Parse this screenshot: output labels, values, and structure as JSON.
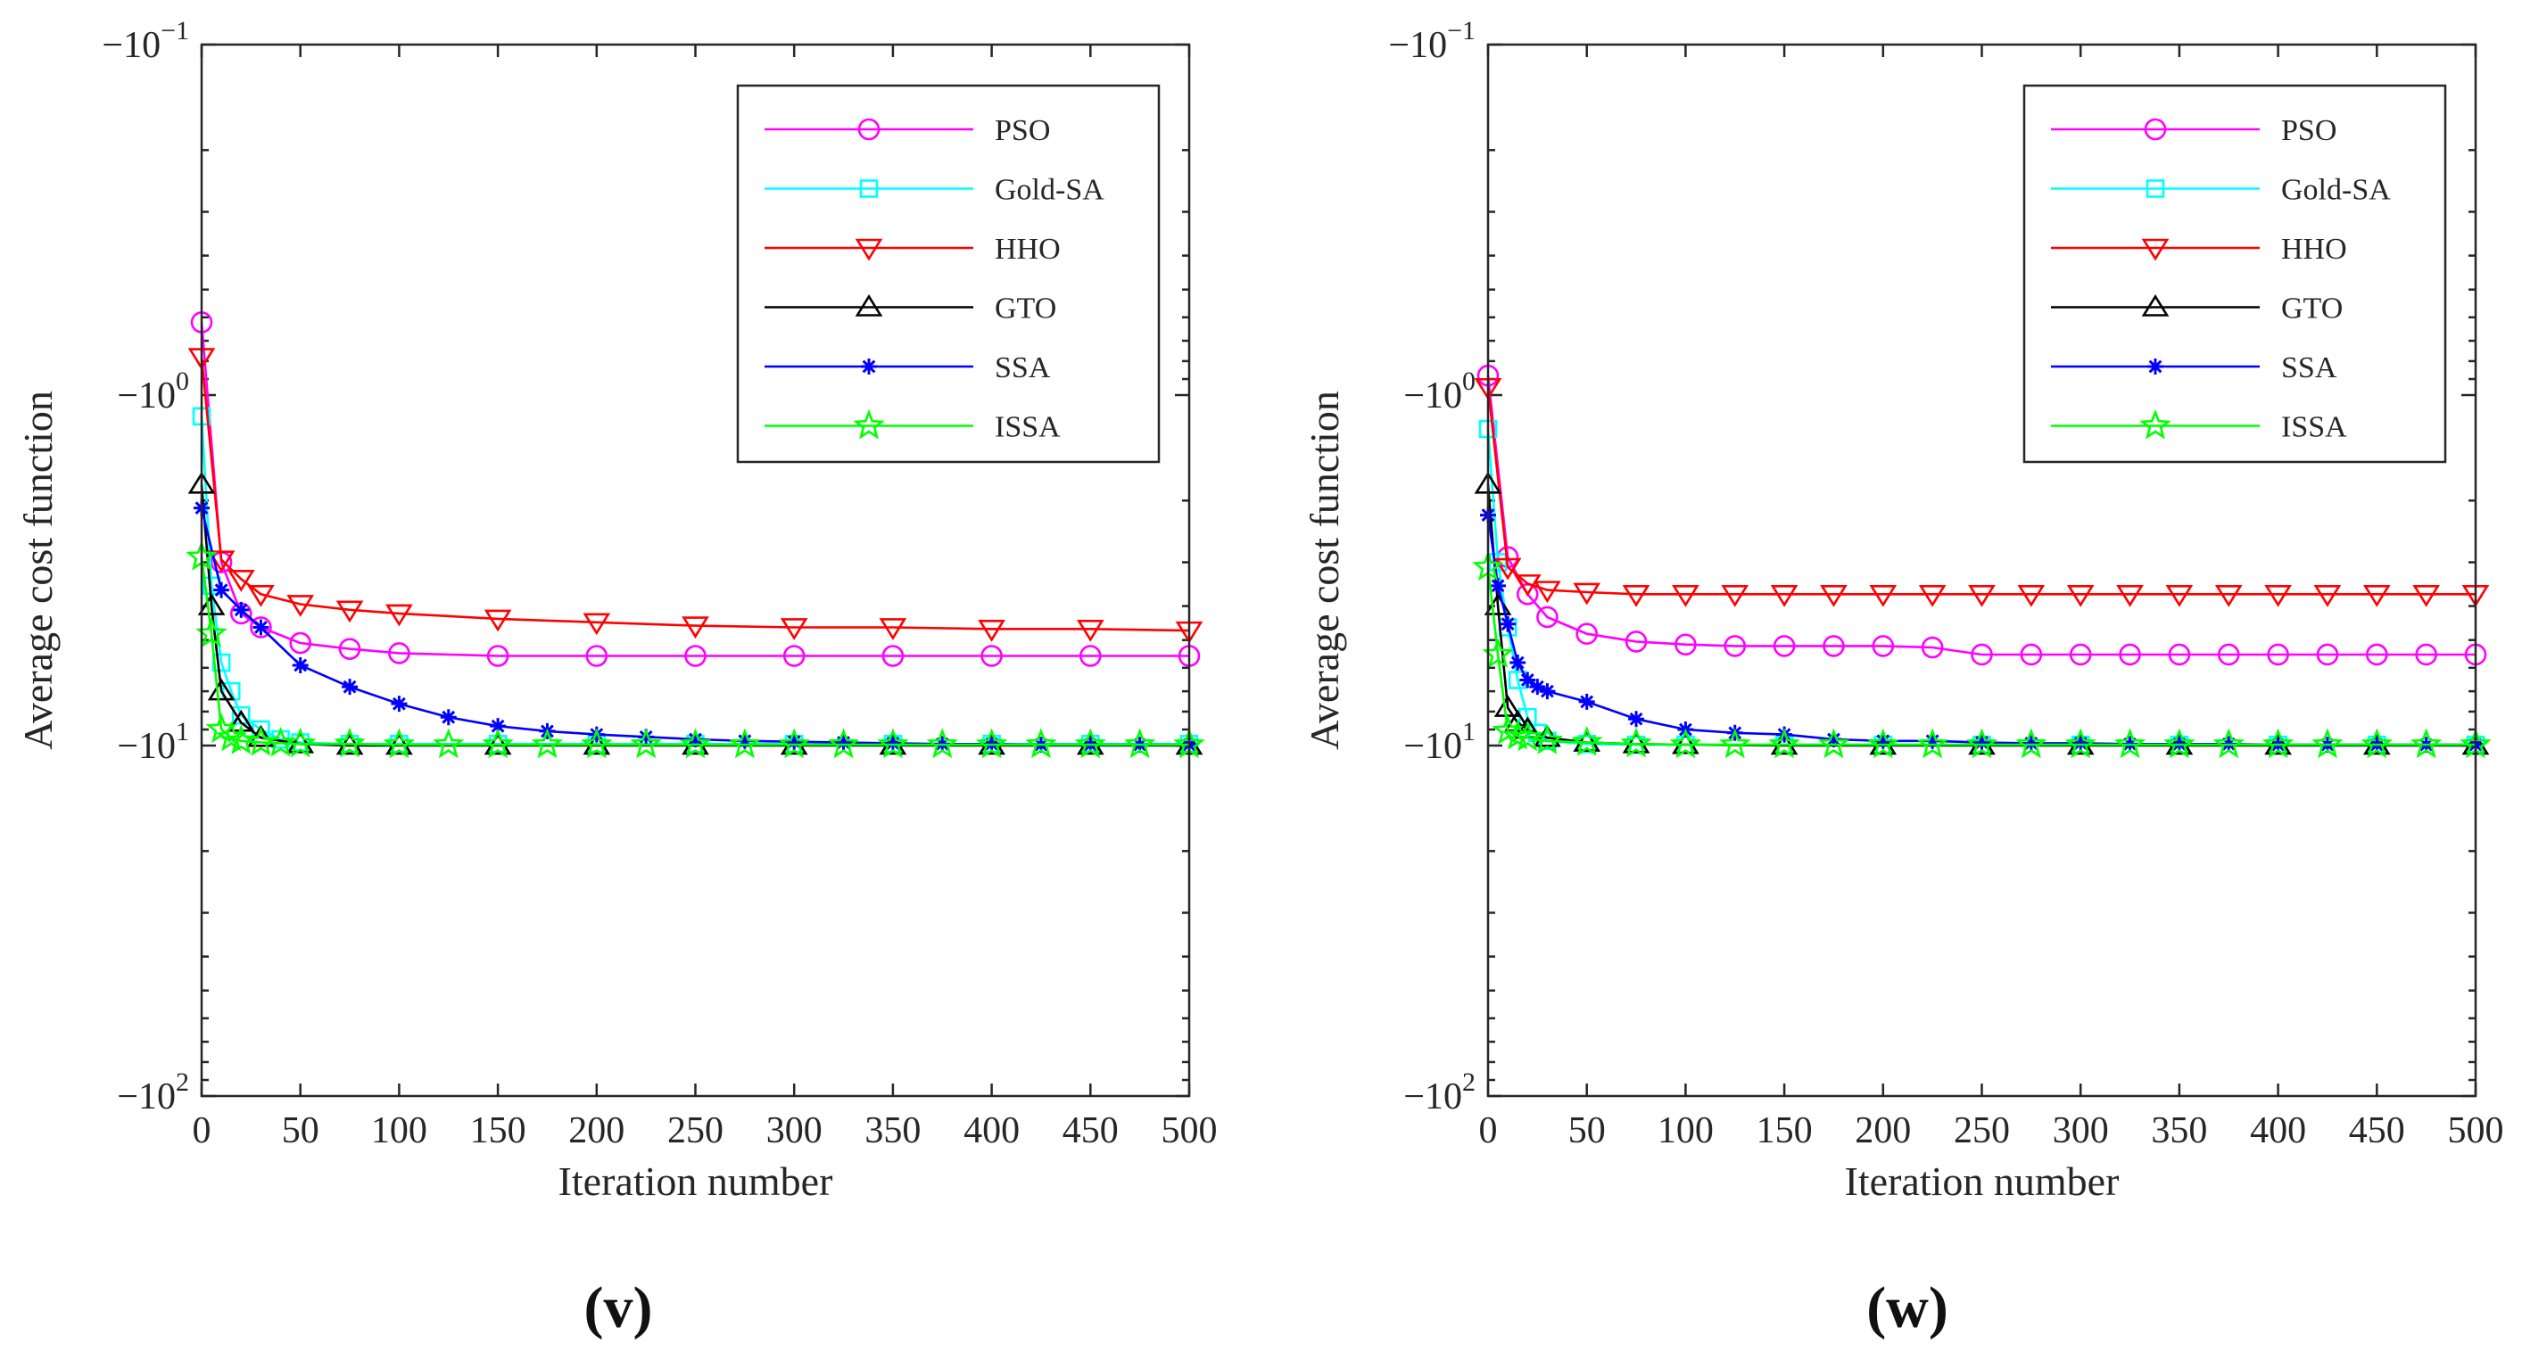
{
  "chart_data": [
    {
      "type": "line",
      "panel_label": "(v)",
      "xlabel": "Iteration number",
      "ylabel": "Average cost function",
      "xlim": [
        0,
        500
      ],
      "xticks": [
        0,
        50,
        100,
        150,
        200,
        250,
        300,
        350,
        400,
        450,
        500
      ],
      "ylim_log_magnitude": [
        0.1,
        100
      ],
      "yscale": "log (negative values, magnitude increases downward)",
      "yticks": [
        {
          "value": -0.1,
          "base": "−10",
          "exp": "−1"
        },
        {
          "value": -1,
          "base": "−10",
          "exp": "0"
        },
        {
          "value": -10,
          "base": "−10",
          "exp": "1"
        },
        {
          "value": -100,
          "base": "−10",
          "exp": "2"
        }
      ],
      "legend_position": "top-right",
      "series": [
        {
          "name": "PSO",
          "color": "#ff00ff",
          "marker": "circle",
          "x": [
            0,
            10,
            20,
            30,
            50,
            75,
            100,
            150,
            200,
            250,
            300,
            350,
            400,
            450,
            500
          ],
          "y": [
            -0.62,
            -3.0,
            -4.2,
            -4.6,
            -5.1,
            -5.3,
            -5.45,
            -5.55,
            -5.55,
            -5.55,
            -5.55,
            -5.55,
            -5.55,
            -5.55,
            -5.55
          ]
        },
        {
          "name": "Gold-SA",
          "color": "#00ffff",
          "marker": "square",
          "x": [
            0,
            5,
            10,
            15,
            20,
            30,
            40,
            50,
            75,
            100,
            150,
            200,
            250,
            300,
            350,
            400,
            450,
            500
          ],
          "y": [
            -1.15,
            -3.5,
            -5.8,
            -7.0,
            -8.2,
            -9.0,
            -9.6,
            -9.8,
            -9.9,
            -9.9,
            -9.9,
            -9.9,
            -9.9,
            -9.9,
            -9.9,
            -9.9,
            -9.9,
            -9.9
          ]
        },
        {
          "name": "HHO",
          "color": "#ff0000",
          "marker": "triangle-down",
          "x": [
            0,
            10,
            20,
            30,
            50,
            75,
            100,
            150,
            200,
            250,
            300,
            350,
            400,
            450,
            500
          ],
          "y": [
            -0.78,
            -2.95,
            -3.35,
            -3.7,
            -3.95,
            -4.1,
            -4.2,
            -4.35,
            -4.45,
            -4.55,
            -4.6,
            -4.6,
            -4.65,
            -4.65,
            -4.7
          ]
        },
        {
          "name": "GTO",
          "color": "#000000",
          "marker": "triangle-up",
          "x": [
            0,
            5,
            10,
            20,
            30,
            50,
            75,
            100,
            150,
            200,
            250,
            300,
            350,
            400,
            450,
            500
          ],
          "y": [
            -1.8,
            -4.0,
            -7.0,
            -8.6,
            -9.5,
            -9.9,
            -10.0,
            -10.0,
            -10.0,
            -10.0,
            -10.0,
            -10.0,
            -10.0,
            -10.0,
            -10.0,
            -10.0
          ]
        },
        {
          "name": "SSA",
          "color": "#0000ff",
          "marker": "asterisk",
          "x": [
            0,
            10,
            20,
            30,
            50,
            75,
            100,
            125,
            150,
            175,
            200,
            225,
            250,
            275,
            300,
            325,
            350,
            375,
            400,
            425,
            450,
            475,
            500
          ],
          "y": [
            -2.1,
            -3.6,
            -4.1,
            -4.6,
            -5.9,
            -6.8,
            -7.6,
            -8.3,
            -8.8,
            -9.1,
            -9.3,
            -9.45,
            -9.6,
            -9.7,
            -9.75,
            -9.8,
            -9.85,
            -9.9,
            -9.9,
            -9.95,
            -9.95,
            -9.95,
            -9.95
          ]
        },
        {
          "name": "ISSA",
          "color": "#00ff00",
          "marker": "star",
          "x": [
            0,
            5,
            10,
            15,
            20,
            30,
            40,
            50,
            75,
            100,
            125,
            150,
            175,
            200,
            225,
            250,
            275,
            300,
            325,
            350,
            375,
            400,
            425,
            450,
            475,
            500
          ],
          "y": [
            -2.9,
            -4.8,
            -9.0,
            -9.5,
            -9.7,
            -9.8,
            -9.85,
            -9.9,
            -9.9,
            -9.95,
            -9.95,
            -9.95,
            -9.95,
            -9.95,
            -9.95,
            -9.95,
            -9.95,
            -9.95,
            -9.95,
            -9.95,
            -9.95,
            -9.95,
            -9.95,
            -9.95,
            -9.95,
            -9.95
          ]
        }
      ]
    },
    {
      "type": "line",
      "panel_label": "(w)",
      "xlabel": "Iteration number",
      "ylabel": "Average cost function",
      "xlim": [
        0,
        500
      ],
      "xticks": [
        0,
        50,
        100,
        150,
        200,
        250,
        300,
        350,
        400,
        450,
        500
      ],
      "ylim_log_magnitude": [
        0.1,
        100
      ],
      "yscale": "log (negative values, magnitude increases downward)",
      "yticks": [
        {
          "value": -0.1,
          "base": "−10",
          "exp": "−1"
        },
        {
          "value": -1,
          "base": "−10",
          "exp": "0"
        },
        {
          "value": -10,
          "base": "−10",
          "exp": "1"
        },
        {
          "value": -100,
          "base": "−10",
          "exp": "2"
        }
      ],
      "legend_position": "top-right",
      "series": [
        {
          "name": "PSO",
          "color": "#ff00ff",
          "marker": "circle",
          "x": [
            0,
            10,
            20,
            30,
            50,
            75,
            100,
            125,
            150,
            175,
            200,
            225,
            250,
            275,
            300,
            325,
            350,
            375,
            400,
            425,
            450,
            475,
            500
          ],
          "y": [
            -0.88,
            -2.9,
            -3.7,
            -4.3,
            -4.8,
            -5.05,
            -5.15,
            -5.2,
            -5.2,
            -5.2,
            -5.2,
            -5.25,
            -5.5,
            -5.5,
            -5.5,
            -5.5,
            -5.5,
            -5.5,
            -5.5,
            -5.5,
            -5.5,
            -5.5,
            -5.5
          ]
        },
        {
          "name": "Gold-SA",
          "color": "#00ffff",
          "marker": "square",
          "x": [
            0,
            5,
            10,
            15,
            20,
            25,
            30,
            50,
            75,
            100,
            150,
            200,
            250,
            300,
            350,
            400,
            450,
            500
          ],
          "y": [
            -1.25,
            -3.0,
            -4.6,
            -6.5,
            -8.3,
            -9.2,
            -9.7,
            -9.9,
            -9.95,
            -9.95,
            -9.95,
            -9.95,
            -9.95,
            -9.95,
            -9.95,
            -9.95,
            -9.95,
            -9.95
          ]
        },
        {
          "name": "HHO",
          "color": "#ff0000",
          "marker": "triangle-down",
          "x": [
            0,
            10,
            20,
            30,
            50,
            75,
            100,
            125,
            150,
            175,
            200,
            225,
            250,
            275,
            300,
            325,
            350,
            375,
            400,
            425,
            450,
            475,
            500
          ],
          "y": [
            -0.95,
            -3.1,
            -3.45,
            -3.6,
            -3.65,
            -3.7,
            -3.7,
            -3.7,
            -3.7,
            -3.7,
            -3.7,
            -3.7,
            -3.7,
            -3.7,
            -3.7,
            -3.7,
            -3.7,
            -3.7,
            -3.7,
            -3.7,
            -3.7,
            -3.7,
            -3.7
          ]
        },
        {
          "name": "GTO",
          "color": "#000000",
          "marker": "triangle-up",
          "x": [
            0,
            5,
            10,
            15,
            20,
            30,
            50,
            75,
            100,
            150,
            200,
            250,
            300,
            350,
            400,
            450,
            500
          ],
          "y": [
            -1.8,
            -4.0,
            -7.8,
            -8.6,
            -9.0,
            -9.5,
            -9.8,
            -9.9,
            -9.95,
            -10.0,
            -10.0,
            -10.0,
            -10.0,
            -10.0,
            -10.0,
            -10.0,
            -10.0
          ]
        },
        {
          "name": "SSA",
          "color": "#0000ff",
          "marker": "asterisk",
          "x": [
            0,
            5,
            10,
            15,
            20,
            25,
            30,
            50,
            75,
            100,
            125,
            150,
            175,
            200,
            225,
            250,
            275,
            300,
            325,
            350,
            375,
            400,
            425,
            450,
            475,
            500
          ],
          "y": [
            -2.2,
            -3.5,
            -4.5,
            -5.8,
            -6.5,
            -6.8,
            -7.0,
            -7.5,
            -8.4,
            -9.0,
            -9.2,
            -9.3,
            -9.6,
            -9.7,
            -9.7,
            -9.8,
            -9.85,
            -9.85,
            -9.9,
            -9.9,
            -9.9,
            -9.95,
            -9.95,
            -9.95,
            -9.95,
            -9.95
          ]
        },
        {
          "name": "ISSA",
          "color": "#00ff00",
          "marker": "star",
          "x": [
            0,
            5,
            10,
            15,
            20,
            30,
            50,
            75,
            100,
            125,
            150,
            175,
            200,
            225,
            250,
            275,
            300,
            325,
            350,
            375,
            400,
            425,
            450,
            475,
            500
          ],
          "y": [
            -3.1,
            -5.5,
            -9.1,
            -9.4,
            -9.5,
            -9.7,
            -9.8,
            -9.9,
            -9.95,
            -9.95,
            -9.95,
            -9.95,
            -9.95,
            -9.95,
            -9.95,
            -9.95,
            -9.95,
            -9.95,
            -9.95,
            -9.95,
            -9.95,
            -9.95,
            -9.95,
            -9.95,
            -9.95
          ]
        }
      ]
    }
  ]
}
